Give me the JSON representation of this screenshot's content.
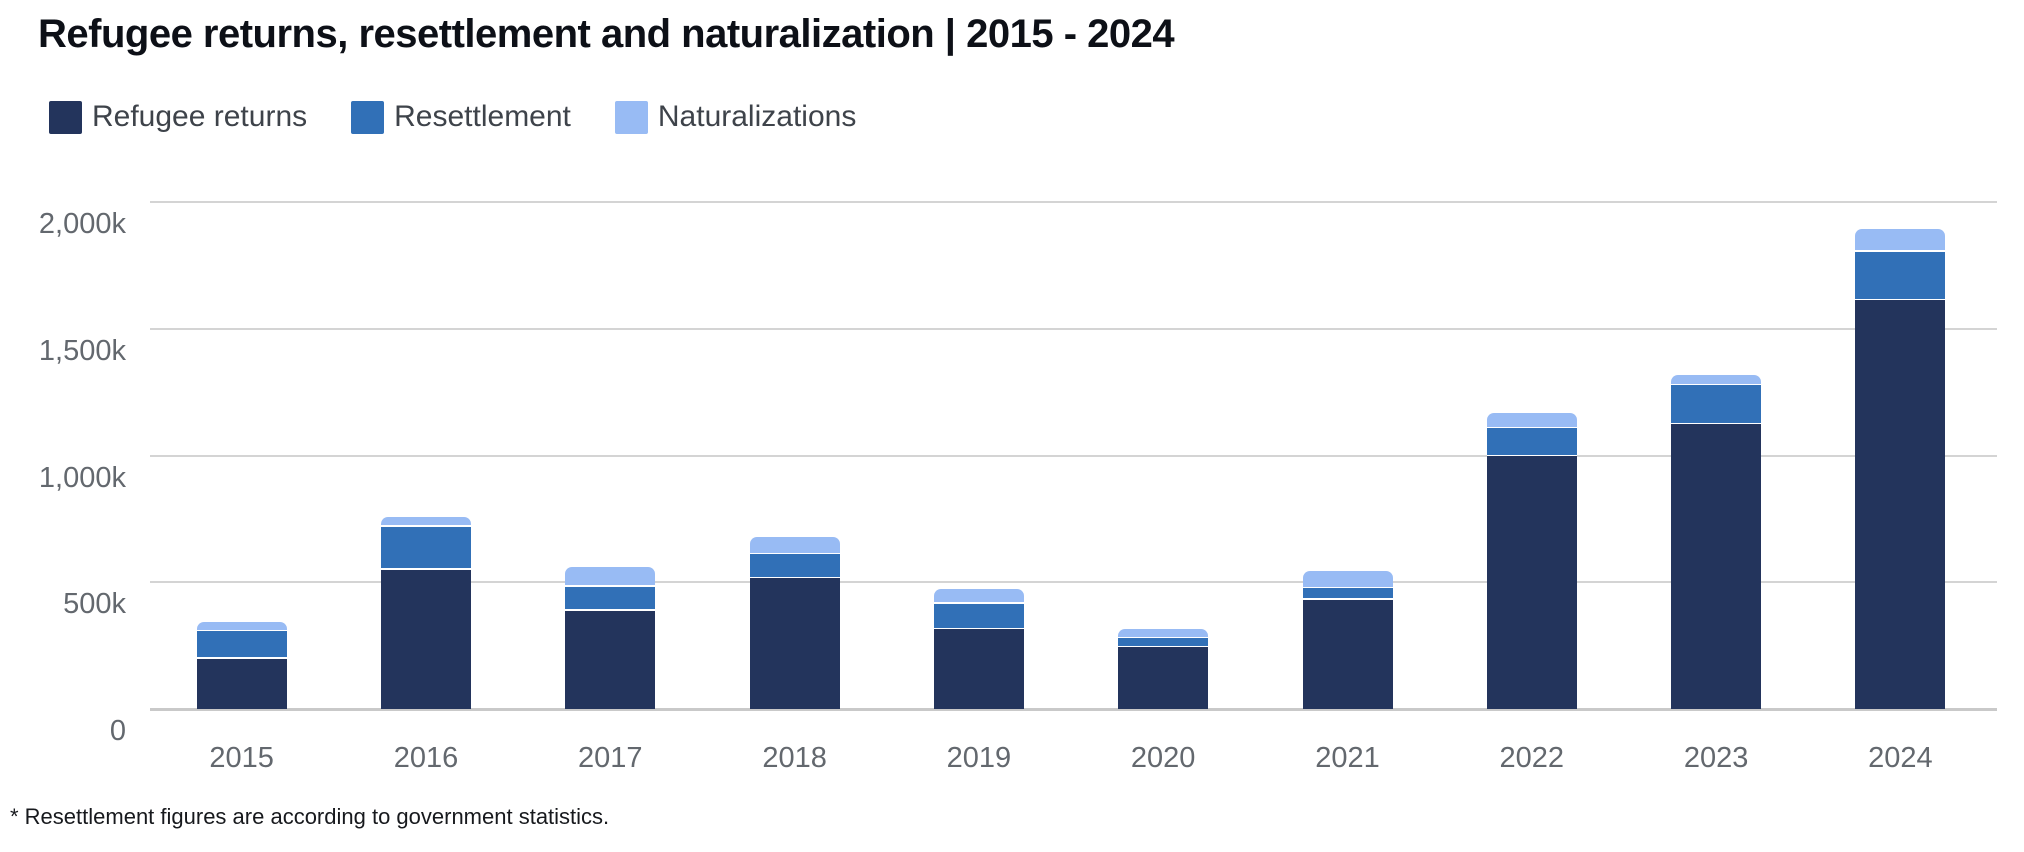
{
  "title": "Refugee returns, resettlement and naturalization | 2015 - 2024",
  "footnote": "* Resettlement figures are according to government statistics.",
  "legend": {
    "items": [
      {
        "label": "Refugee returns",
        "color": "#23345c"
      },
      {
        "label": "Resettlement",
        "color": "#3170b7"
      },
      {
        "label": "Naturalizations",
        "color": "#98bbf4"
      }
    ]
  },
  "colors": {
    "refugee_returns": "#23345c",
    "resettlement": "#3170b7",
    "naturalizations": "#98bbf4",
    "gridline": "#d4d4d4",
    "baseline": "#c9c9c9",
    "axis_text": "#63686e",
    "title_text": "#0d1017",
    "legend_text": "#3e434a"
  },
  "chart_data": {
    "type": "bar",
    "stacked": true,
    "title": "Refugee returns, resettlement and naturalization | 2015 - 2024",
    "unit": "thousands (k)",
    "categories": [
      "2015",
      "2016",
      "2017",
      "2018",
      "2019",
      "2020",
      "2021",
      "2022",
      "2023",
      "2024"
    ],
    "series": [
      {
        "name": "Refugee returns",
        "color": "#23345c",
        "values": [
          205,
          555,
          394,
          521,
          320,
          249,
          437,
          1004,
          1129,
          1619
        ]
      },
      {
        "name": "Resettlement",
        "color": "#3170b7",
        "values": [
          107,
          170,
          95,
          95,
          101,
          37,
          46,
          110,
          154,
          191
        ]
      },
      {
        "name": "Naturalizations",
        "color": "#98bbf4",
        "values": [
          33,
          32,
          73,
          62,
          53,
          29,
          62,
          53,
          34,
          84
        ]
      }
    ],
    "totals": [
      345,
      757,
      562,
      678,
      474,
      315,
      545,
      1167,
      1317,
      1894
    ],
    "xlabel": "",
    "ylabel": "",
    "ylim": [
      0,
      2000
    ],
    "yticks": [
      {
        "value": 0,
        "label": "0"
      },
      {
        "value": 500,
        "label": "500k"
      },
      {
        "value": 1000,
        "label": "1,000k"
      },
      {
        "value": 1500,
        "label": "1,500k"
      },
      {
        "value": 2000,
        "label": "2,000k"
      }
    ],
    "grid": "horizontal",
    "legend_position": "top-left"
  }
}
